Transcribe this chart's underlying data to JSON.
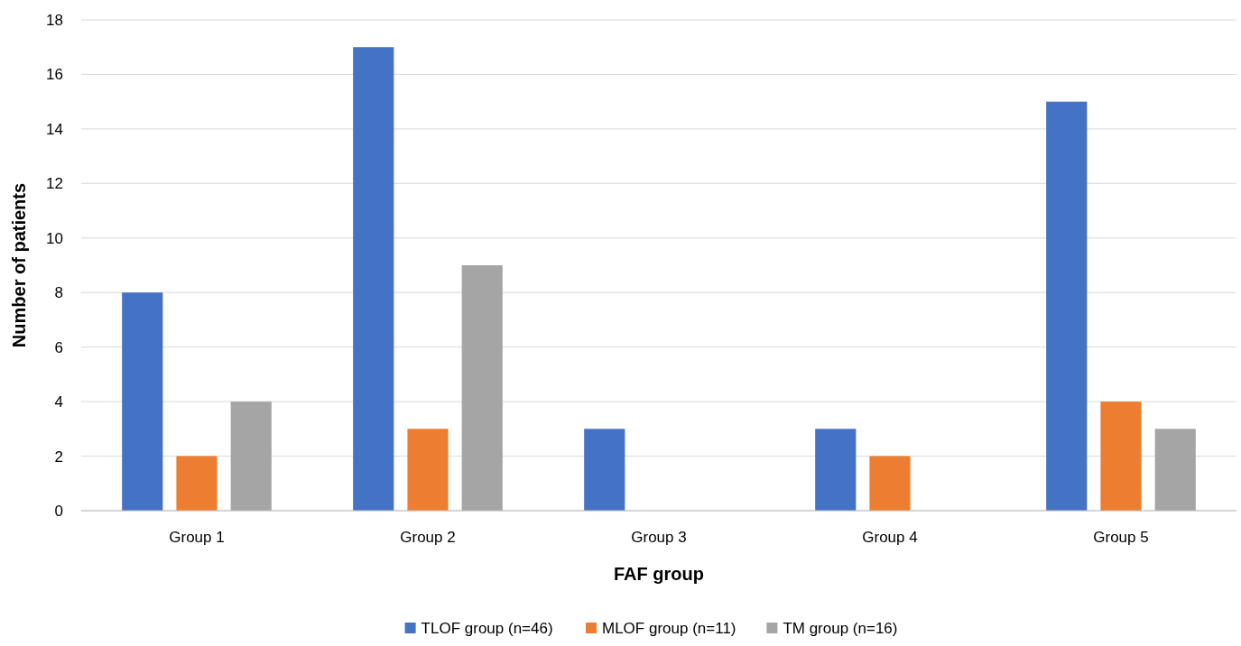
{
  "chart_data": {
    "type": "bar",
    "xlabel": "FAF group",
    "ylabel": "Number of patients",
    "categories": [
      "Group 1",
      "Group 2",
      "Group 3",
      "Group 4",
      "Group 5"
    ],
    "series": [
      {
        "name": "TLOF group (n=46)",
        "color": "#4472c4",
        "values": [
          8,
          17,
          3,
          3,
          15
        ]
      },
      {
        "name": "MLOF group (n=11)",
        "color": "#ed7d31",
        "values": [
          2,
          3,
          0,
          2,
          4
        ]
      },
      {
        "name": "TM group (n=16)",
        "color": "#a5a5a5",
        "values": [
          4,
          9,
          0,
          0,
          3
        ]
      }
    ],
    "ylim": [
      0,
      18
    ],
    "yticks": [
      0,
      2,
      4,
      6,
      8,
      10,
      12,
      14,
      16,
      18
    ],
    "grid": "y",
    "legend": "bottom"
  }
}
